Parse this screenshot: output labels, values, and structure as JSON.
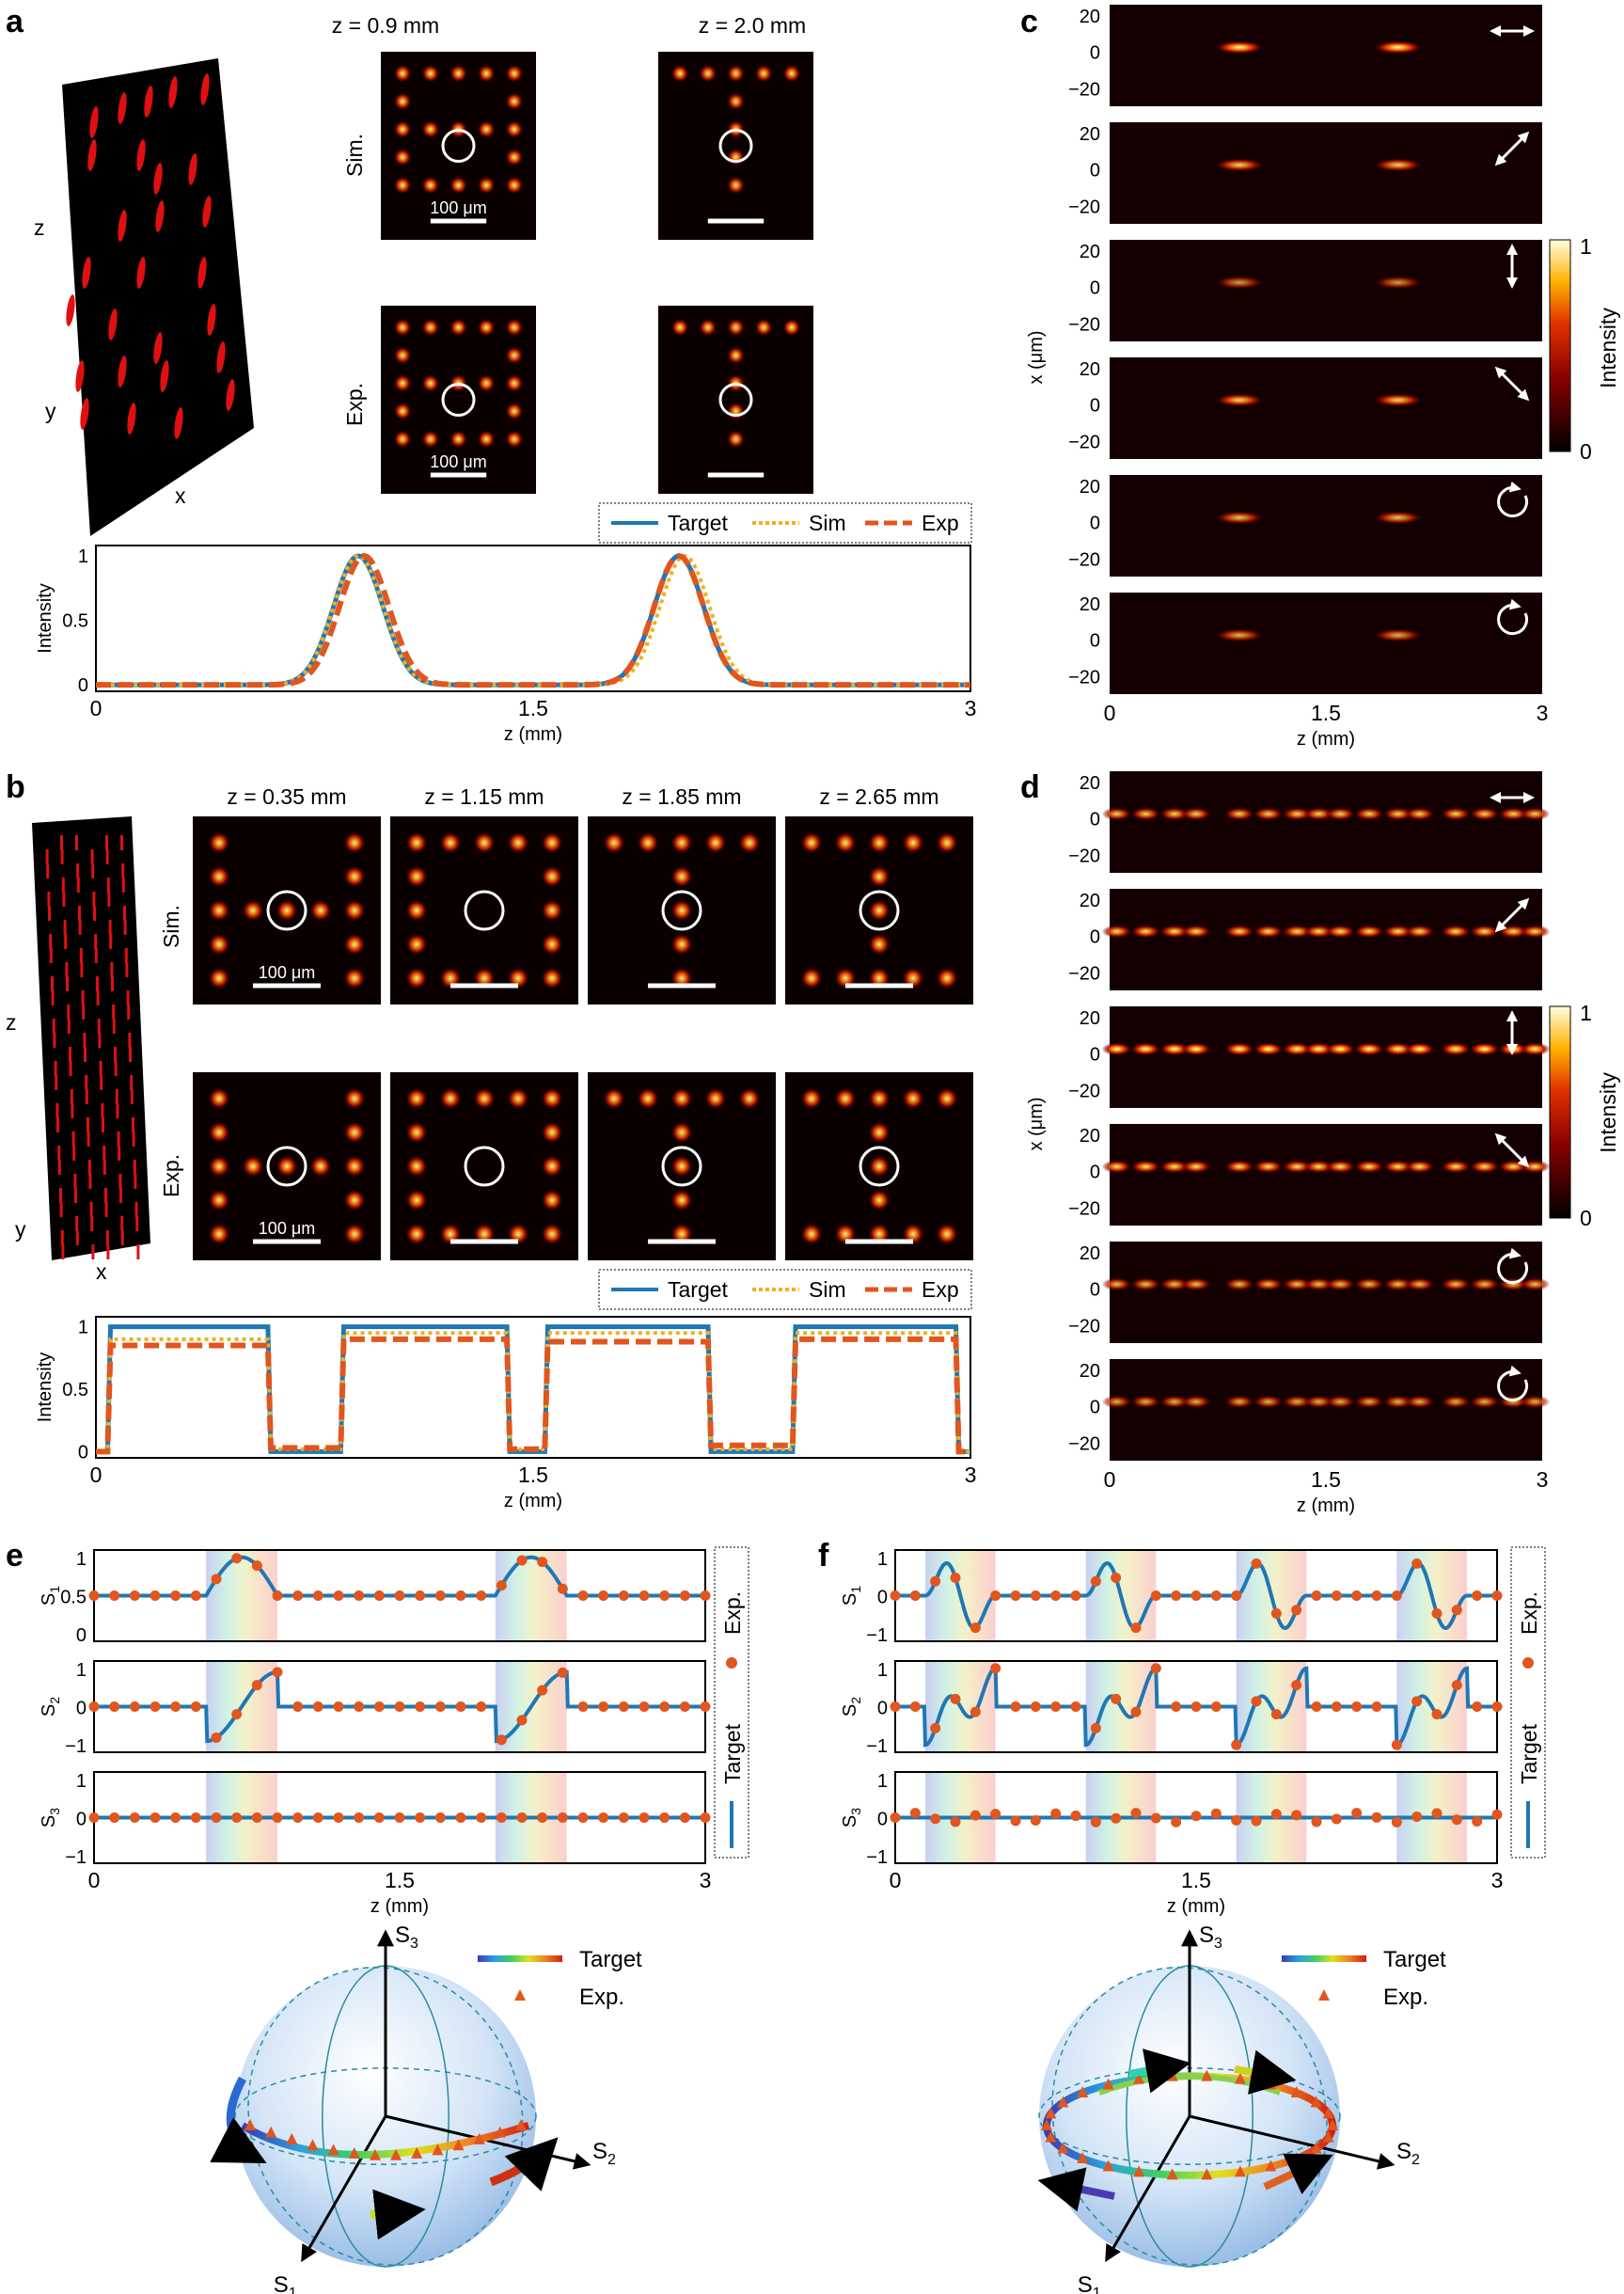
{
  "figure": {
    "panels": {
      "a": "a",
      "b": "b",
      "c": "c",
      "d": "d",
      "e": "e",
      "f": "f"
    },
    "axis": {
      "x": "x",
      "y": "y",
      "z": "z"
    },
    "row_sim": "Sim.",
    "row_exp": "Exp.",
    "scalebar": "100 μm",
    "a_planes": [
      "z = 0.9 mm",
      "z = 2.0 mm"
    ],
    "b_planes": [
      "z = 0.35 mm",
      "z = 1.15 mm",
      "z = 1.85 mm",
      "z = 2.65 mm"
    ],
    "legend_profile": [
      "Target",
      "Sim",
      "Exp"
    ],
    "legend_stokes": [
      "Exp.",
      "Target"
    ],
    "legend_sphere": [
      "Target",
      "Exp."
    ],
    "sphere_axes": [
      "S3",
      "S2",
      "S1"
    ],
    "colorbar": {
      "label": "Intensity",
      "max": "1",
      "min": "0"
    },
    "polarization_icons": [
      "horizontal-arrow",
      "diagonal-arrow",
      "vertical-arrow",
      "antidiagonal-arrow",
      "circular-arrow",
      "circular-arrow"
    ],
    "colors": {
      "target": "#1f77b4",
      "sim": "#f0b020",
      "exp": "#e0561e"
    }
  },
  "chart_data": [
    {
      "id": "a-profile",
      "type": "line",
      "xlabel": "z (mm)",
      "ylabel": "Intensity",
      "xticks": [
        "0",
        "1.5",
        "3"
      ],
      "yticks": [
        "0",
        "0.5",
        "1"
      ],
      "xlim": [
        0,
        3
      ],
      "ylim": [
        -0.05,
        1.08
      ],
      "series": [
        {
          "name": "Target",
          "kind": "gauss",
          "centers": [
            0.9,
            2.0
          ],
          "width": 0.12
        },
        {
          "name": "Sim",
          "kind": "gauss",
          "centers": [
            0.9,
            2.02
          ],
          "width": 0.12
        },
        {
          "name": "Exp",
          "kind": "gauss",
          "centers": [
            0.92,
            2.0
          ],
          "width": 0.12
        }
      ]
    },
    {
      "id": "b-profile",
      "type": "line",
      "xlabel": "z (mm)",
      "ylabel": "Intensity",
      "xticks": [
        "0",
        "1.5",
        "3"
      ],
      "yticks": [
        "0",
        "0.5",
        "1"
      ],
      "xlim": [
        0,
        3
      ],
      "ylim": [
        -0.05,
        1.08
      ],
      "series": [
        {
          "name": "Target",
          "kind": "rect",
          "levels": [
            [
              0.05,
              0.6,
              1
            ],
            [
              0.6,
              0.85,
              0
            ],
            [
              0.85,
              1.42,
              1
            ],
            [
              1.42,
              1.55,
              0
            ],
            [
              1.55,
              2.1,
              1
            ],
            [
              2.1,
              2.4,
              0
            ],
            [
              2.4,
              2.95,
              1
            ]
          ]
        },
        {
          "name": "Sim",
          "kind": "rect",
          "levels": [
            [
              0.05,
              0.6,
              0.9
            ],
            [
              0.6,
              0.85,
              0.02
            ],
            [
              0.85,
              1.42,
              0.95
            ],
            [
              1.42,
              1.55,
              0.02
            ],
            [
              1.55,
              2.1,
              0.95
            ],
            [
              2.1,
              2.4,
              0.02
            ],
            [
              2.4,
              2.95,
              0.95
            ]
          ]
        },
        {
          "name": "Exp",
          "kind": "rect",
          "levels": [
            [
              0.05,
              0.6,
              0.85
            ],
            [
              0.6,
              0.85,
              0.03
            ],
            [
              0.85,
              1.42,
              0.9
            ],
            [
              1.42,
              1.55,
              0.02
            ],
            [
              1.55,
              2.1,
              0.88
            ],
            [
              2.1,
              2.4,
              0.05
            ],
            [
              2.4,
              2.95,
              0.9
            ]
          ]
        }
      ]
    },
    {
      "id": "c-heatmaps",
      "type": "heatmap",
      "xlabel": "z (mm)",
      "ylabel": "x (μm)",
      "xticks": [
        "0",
        "1.5",
        "3"
      ],
      "yticks": [
        "20",
        "0",
        "−20"
      ],
      "spot_z": [
        0.9,
        2.0
      ],
      "spot_strength": [
        1,
        0.7,
        0.35,
        0.75,
        0.6,
        0.5
      ]
    },
    {
      "id": "d-heatmaps",
      "type": "heatmap",
      "xlabel": "z (mm)",
      "ylabel": "x (μm)",
      "xticks": [
        "0",
        "1.5",
        "3"
      ],
      "yticks": [
        "20",
        "0",
        "−20"
      ],
      "spot_z": [
        0.05,
        0.25,
        0.45,
        0.6,
        0.9,
        1.1,
        1.3,
        1.45,
        1.6,
        1.8,
        2.0,
        2.15,
        2.4,
        2.6,
        2.8,
        2.95
      ],
      "spot_strength": [
        0.7,
        0.8,
        1,
        0.8,
        0.6,
        0.5
      ]
    },
    {
      "id": "e-stokes",
      "type": "line",
      "xlabel": "z (mm)",
      "xticks": [
        "0",
        "1.5",
        "3"
      ],
      "yticks": [
        "1",
        "0.5",
        "0"
      ],
      "yticks2": [
        "0",
        "−1"
      ],
      "rows": [
        "S1",
        "S2",
        "S3"
      ],
      "bands": [
        [
          0.55,
          0.9
        ],
        [
          1.97,
          2.32
        ]
      ]
    },
    {
      "id": "f-stokes",
      "type": "line",
      "xlabel": "z (mm)",
      "xticks": [
        "0",
        "1.5",
        "3"
      ],
      "yticks": [
        "1",
        "0",
        "−1"
      ],
      "rows": [
        "S1",
        "S2",
        "S3"
      ],
      "bands": [
        [
          0.15,
          0.5
        ],
        [
          0.95,
          1.3
        ],
        [
          1.7,
          2.05
        ],
        [
          2.5,
          2.85
        ]
      ]
    }
  ]
}
